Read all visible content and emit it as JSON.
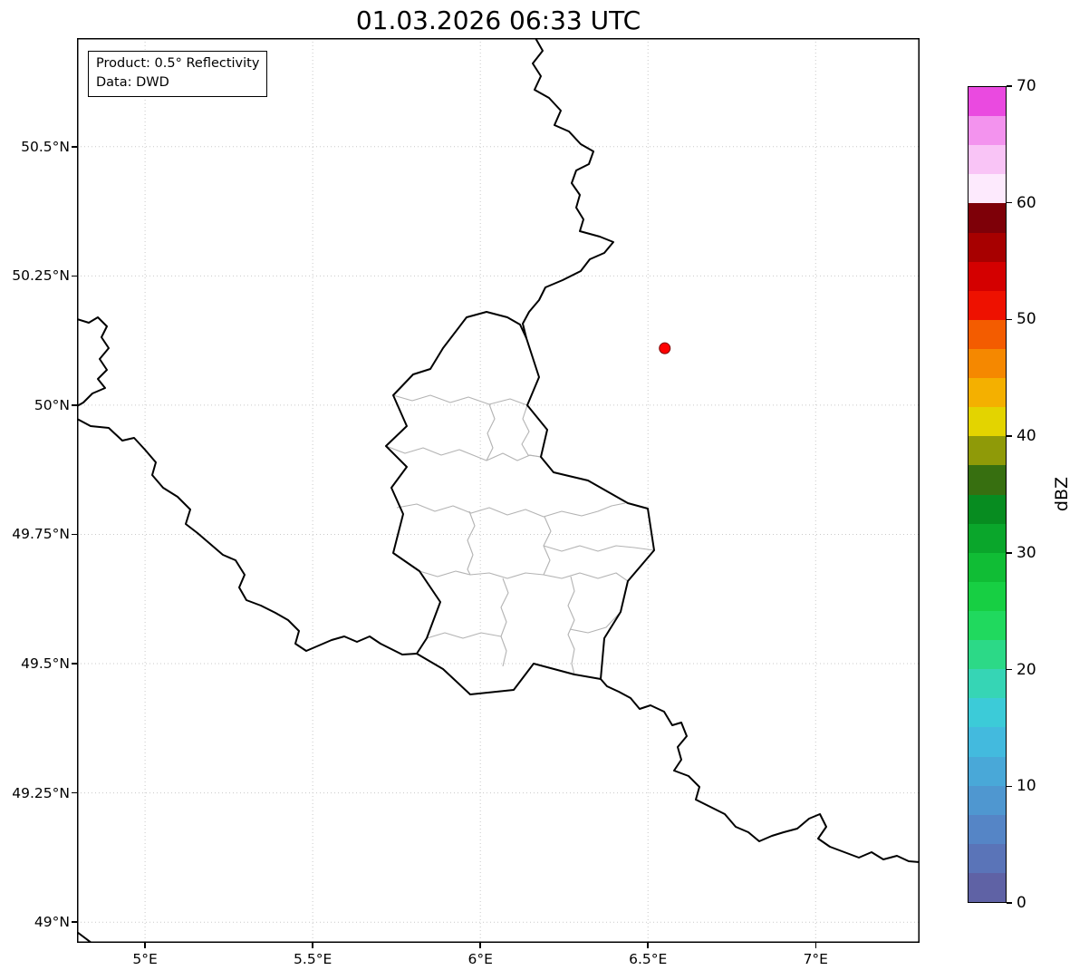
{
  "title": "01.03.2026 06:33 UTC",
  "info_box": {
    "line1": "Product: 0.5° Reflectivity",
    "line2": "Data: DWD"
  },
  "map": {
    "extent": {
      "lon_min": 4.797,
      "lon_max": 7.31,
      "lat_min": 48.96,
      "lat_max": 50.71
    },
    "x_ticks": [
      {
        "label": "5°E",
        "lon": 5.0
      },
      {
        "label": "5.5°E",
        "lon": 5.5
      },
      {
        "label": "6°E",
        "lon": 6.0
      },
      {
        "label": "6.5°E",
        "lon": 6.5
      },
      {
        "label": "7°E",
        "lon": 7.0
      }
    ],
    "y_ticks": [
      {
        "label": "50.5°N",
        "lat": 50.5
      },
      {
        "label": "50.25°N",
        "lat": 50.25
      },
      {
        "label": "50°N",
        "lat": 50.0
      },
      {
        "label": "49.75°N",
        "lat": 49.75
      },
      {
        "label": "49.5°N",
        "lat": 49.5
      },
      {
        "label": "49.25°N",
        "lat": 49.25
      },
      {
        "label": "49°N",
        "lat": 49.0
      }
    ],
    "radar_marker": {
      "lon": 6.55,
      "lat": 50.11,
      "color": "#ff0000"
    }
  },
  "colorbar": {
    "label": "dBZ",
    "unit_min": 0,
    "unit_max": 70,
    "ticks": [
      0,
      10,
      20,
      30,
      40,
      50,
      60,
      70
    ],
    "colors_bottom_to_top": [
      "#5f62a5",
      "#5a74b8",
      "#5585c6",
      "#4f97d0",
      "#49a8d8",
      "#43bade",
      "#3ccbd8",
      "#36d5b5",
      "#2cd987",
      "#20d95e",
      "#17cf43",
      "#10bd35",
      "#0aa62b",
      "#078c20",
      "#376f10",
      "#8f9a08",
      "#e3d400",
      "#f4b000",
      "#f58800",
      "#f35c00",
      "#ee1100",
      "#d40000",
      "#a70000",
      "#7e0008",
      "#fdeafd",
      "#f9c4f6",
      "#f393ee",
      "#ea4ae0"
    ]
  },
  "colors": {
    "country_border": "#000000",
    "canton_border": "#b3b3b3",
    "grid": "#c9c9c9",
    "background": "#ffffff"
  }
}
